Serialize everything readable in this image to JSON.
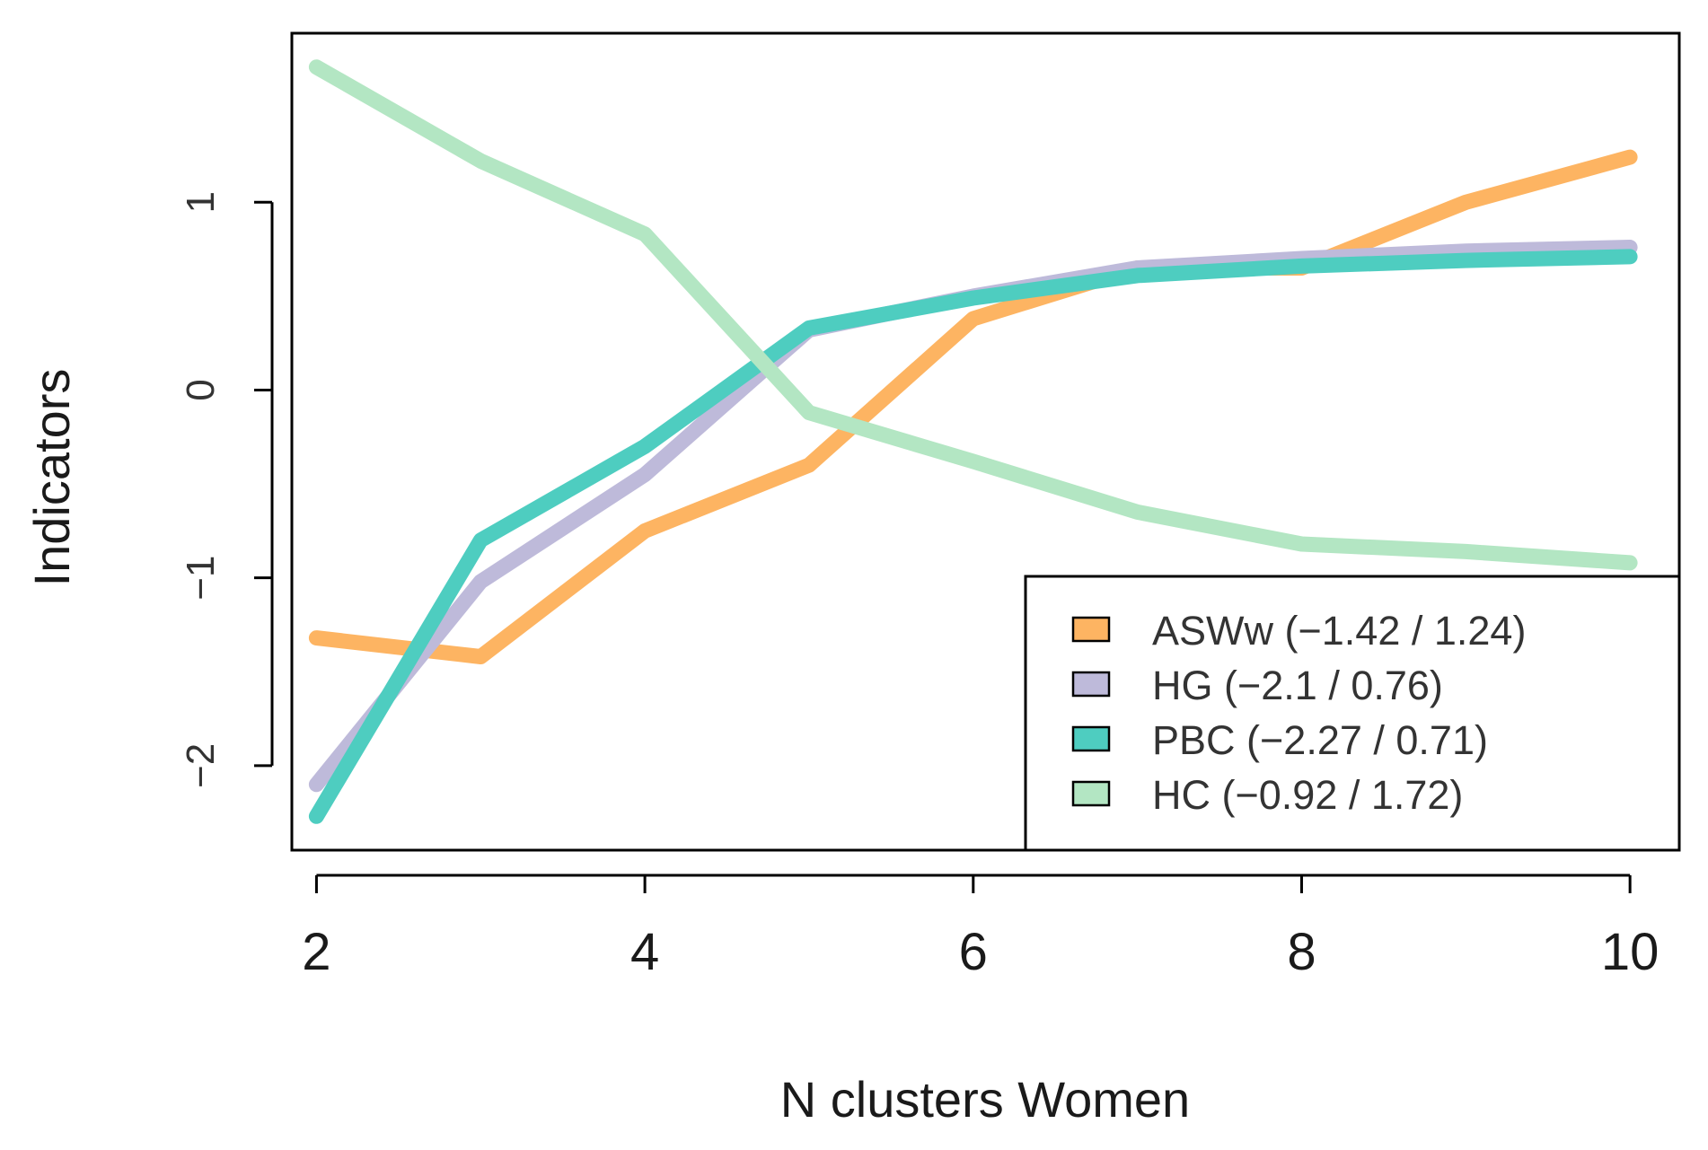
{
  "chart_data": {
    "type": "line",
    "title": "",
    "xlabel": "N clusters Women",
    "ylabel": "Indicators",
    "x": [
      2,
      3,
      4,
      5,
      6,
      7,
      8,
      9,
      10
    ],
    "xlim": [
      1.85,
      10.3
    ],
    "ylim": [
      -2.45,
      1.9
    ],
    "xticks": [
      2,
      4,
      6,
      8,
      10
    ],
    "xtick_labels": [
      "2",
      "4",
      "6",
      "8",
      "10"
    ],
    "yticks": [
      -2,
      -1,
      0,
      1
    ],
    "ytick_labels": [
      "−2",
      "−1",
      "0",
      "1"
    ],
    "grid": false,
    "legend_position": "bottom-right",
    "series": [
      {
        "name": "ASWw",
        "label": "ASWw (−1.42 / 1.24)",
        "color": "#FDB462",
        "values": [
          -1.32,
          -1.42,
          -0.75,
          -0.4,
          0.38,
          0.65,
          0.65,
          1.0,
          1.24
        ]
      },
      {
        "name": "HG",
        "label": "HG (−2.1 / 0.76)",
        "color": "#BEBADA",
        "values": [
          -2.1,
          -1.02,
          -0.45,
          0.32,
          0.5,
          0.65,
          0.7,
          0.74,
          0.76
        ]
      },
      {
        "name": "PBC",
        "label": "PBC (−2.27 / 0.71)",
        "color": "#4ECDC0",
        "values": [
          -2.27,
          -0.8,
          -0.3,
          0.33,
          0.49,
          0.61,
          0.66,
          0.69,
          0.71
        ]
      },
      {
        "name": "HC",
        "label": "HC (−0.92 / 1.72)",
        "color": "#B3E6C3",
        "values": [
          1.72,
          1.22,
          0.83,
          -0.12,
          -0.38,
          -0.65,
          -0.82,
          -0.86,
          -0.92
        ]
      }
    ]
  }
}
